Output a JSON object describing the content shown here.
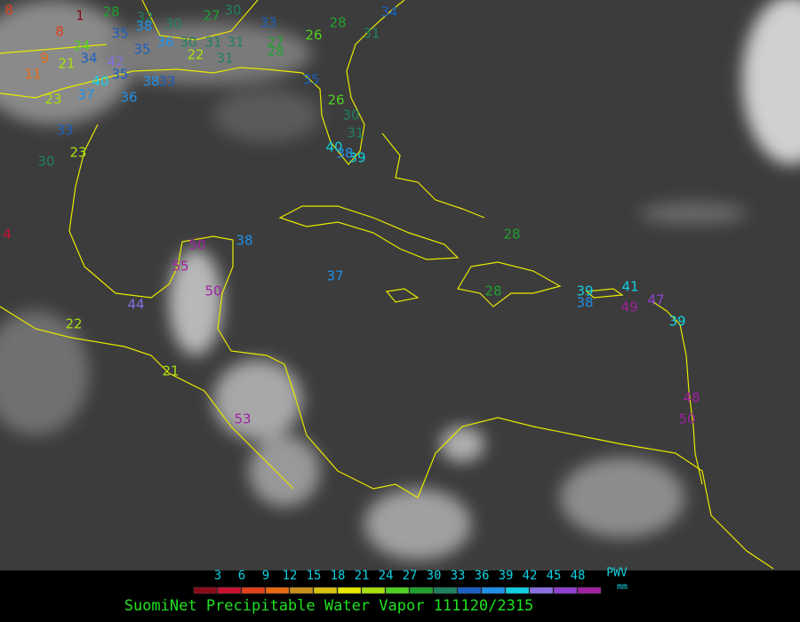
{
  "map": {
    "stations": [
      8,
      1,
      28,
      32,
      30,
      27,
      30,
      33,
      28,
      34,
      8,
      24,
      35,
      38,
      36,
      30,
      31,
      31,
      27,
      26,
      31,
      9,
      21,
      34,
      42,
      35,
      22,
      31,
      28,
      11,
      40,
      35,
      38,
      33,
      35,
      26,
      23,
      37,
      36,
      33,
      23,
      30,
      30,
      31,
      40,
      38,
      39,
      4,
      50,
      38,
      55,
      37,
      50,
      44,
      22,
      21,
      53,
      28,
      28,
      39,
      38,
      41,
      47,
      49,
      39,
      48,
      50
    ],
    "colorbar": {
      "ticks": [
        3,
        6,
        9,
        12,
        15,
        18,
        21,
        24,
        27,
        30,
        33,
        36,
        39,
        42,
        45,
        48
      ],
      "colors": [
        "#8b0a1a",
        "#c8102e",
        "#e0401a",
        "#e86a10",
        "#c8901a",
        "#d8c010",
        "#e8e800",
        "#a8e010",
        "#50d020",
        "#20a030",
        "#208060",
        "#1a60c0",
        "#2090e8",
        "#10d0e0",
        "#8870e0",
        "#9040d0",
        "#a020a0"
      ],
      "unit_title": "PWV",
      "unit": "mm"
    },
    "caption": "SuomiNet Precipitable Water Vapor 111120/2315"
  }
}
